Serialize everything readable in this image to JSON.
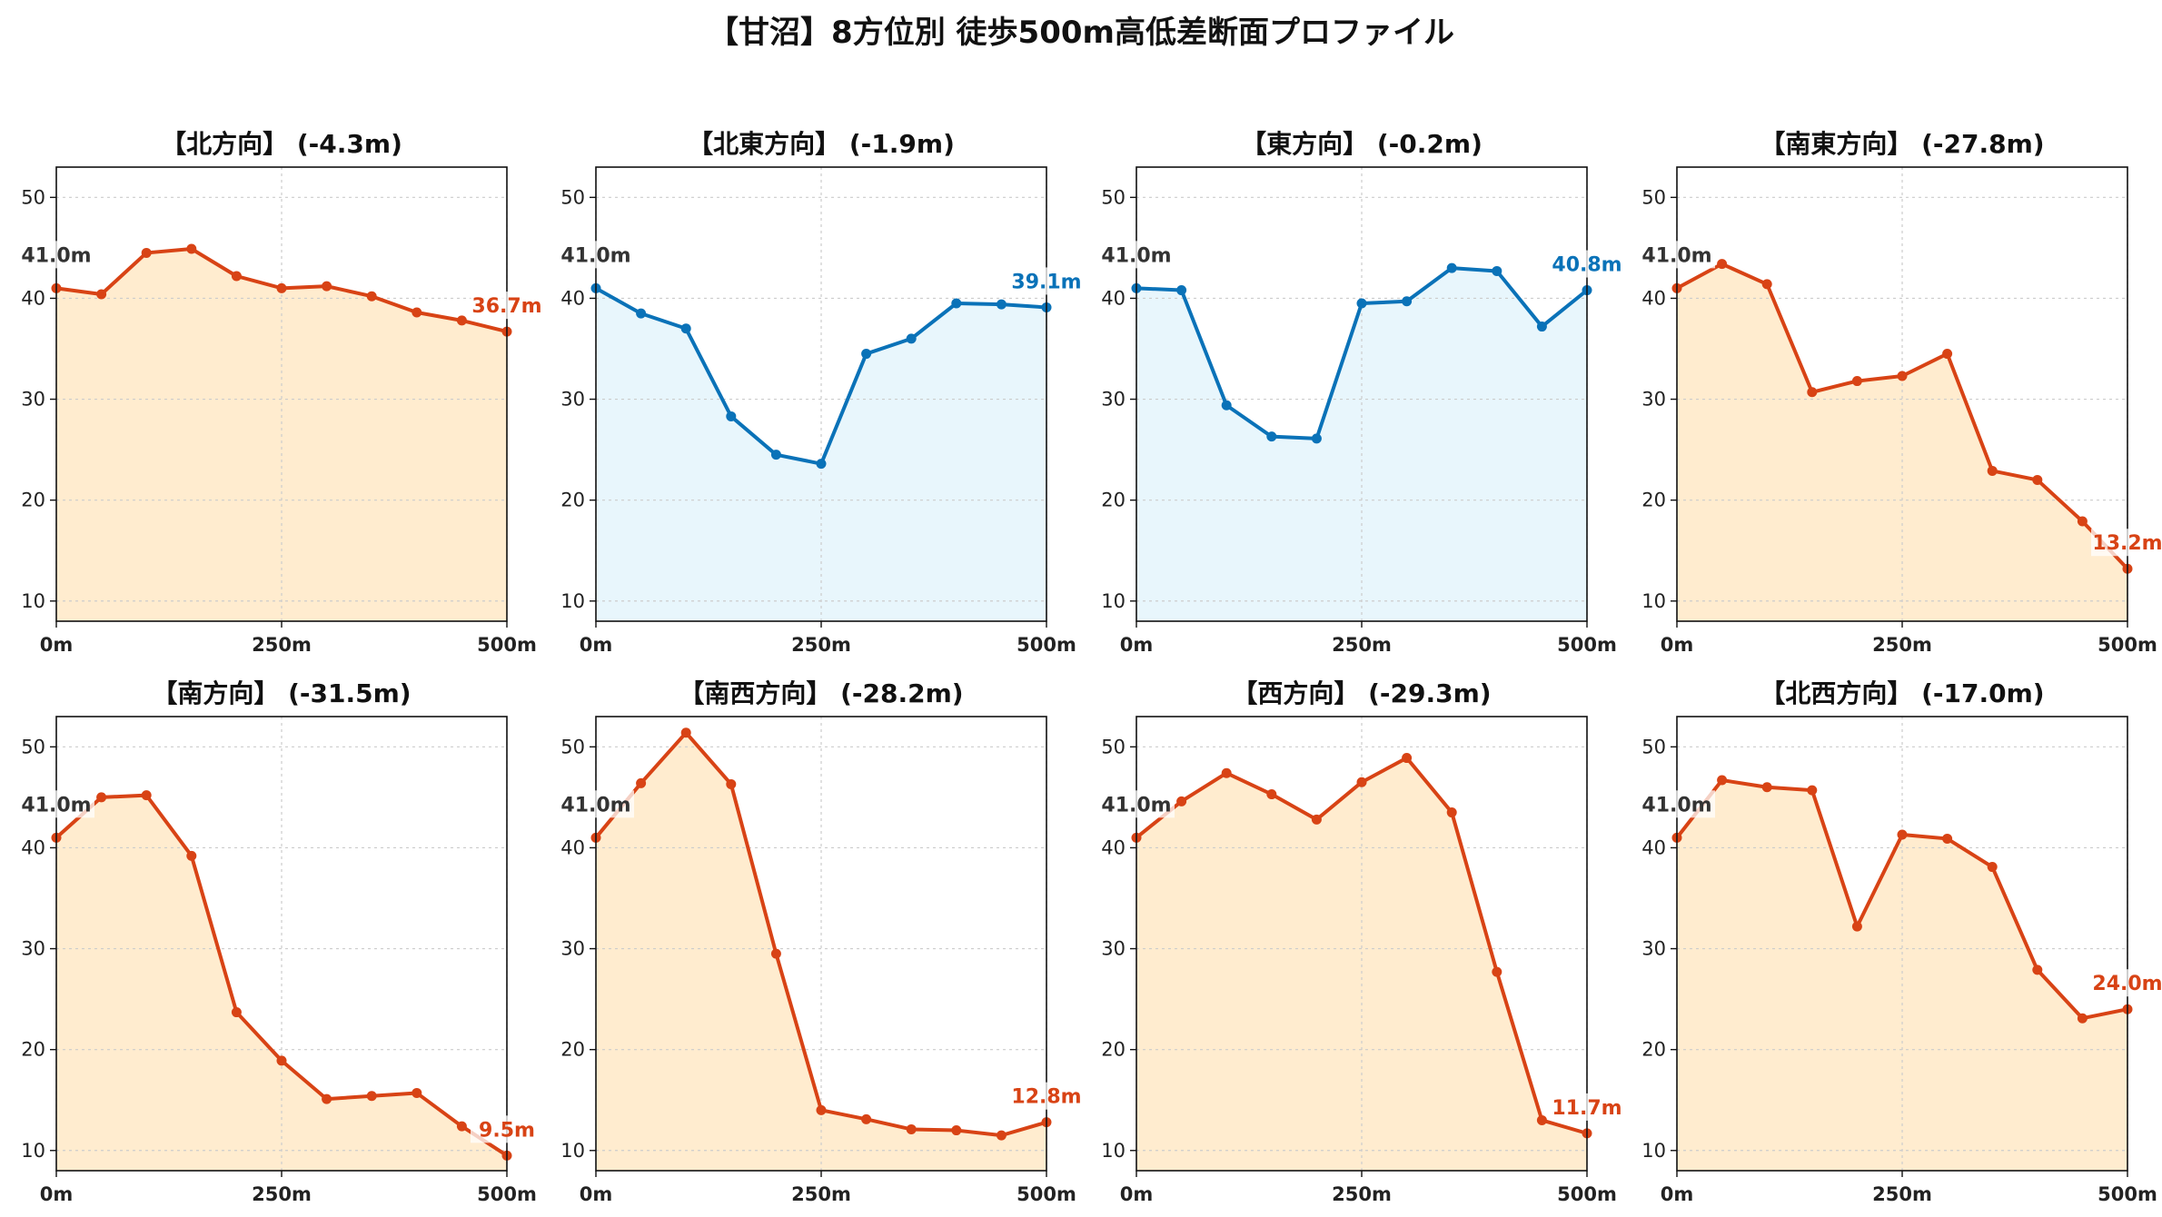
{
  "title": "【甘沼】8方位別 徒歩500m高低差断面プロファイル",
  "colors": {
    "down_line": "#d84315",
    "down_fill": "#ffeccf",
    "up_line": "#0a72b8",
    "up_fill": "#e8f6fc",
    "grid": "#cccccc"
  },
  "chart_data": [
    {
      "type": "area",
      "title": "【北方向】 (-4.3m)",
      "x": [
        0,
        50,
        100,
        150,
        200,
        250,
        300,
        350,
        400,
        450,
        500
      ],
      "y": [
        41.0,
        40.4,
        44.5,
        44.9,
        42.2,
        41.0,
        41.2,
        40.2,
        38.6,
        37.8,
        36.7
      ],
      "xlim": [
        0,
        500
      ],
      "ylim": [
        8,
        53
      ],
      "xticks": [
        "0m",
        "250m",
        "500m"
      ],
      "yticks": [
        10,
        20,
        30,
        40,
        50
      ],
      "start_label": "41.0m",
      "end_label": "36.7m",
      "trend": "down",
      "grid": true
    },
    {
      "type": "area",
      "title": "【北東方向】 (-1.9m)",
      "x": [
        0,
        50,
        100,
        150,
        200,
        250,
        300,
        350,
        400,
        450,
        500
      ],
      "y": [
        41.0,
        38.5,
        37.0,
        28.3,
        24.5,
        23.6,
        34.5,
        36.0,
        39.5,
        39.4,
        39.1
      ],
      "xlim": [
        0,
        500
      ],
      "ylim": [
        8,
        53
      ],
      "xticks": [
        "0m",
        "250m",
        "500m"
      ],
      "yticks": [
        10,
        20,
        30,
        40,
        50
      ],
      "start_label": "41.0m",
      "end_label": "39.1m",
      "trend": "up",
      "grid": true
    },
    {
      "type": "area",
      "title": "【東方向】 (-0.2m)",
      "x": [
        0,
        50,
        100,
        150,
        200,
        250,
        300,
        350,
        400,
        450,
        500
      ],
      "y": [
        41.0,
        40.8,
        29.4,
        26.3,
        26.1,
        39.5,
        39.7,
        43.0,
        42.7,
        37.2,
        40.8
      ],
      "xlim": [
        0,
        500
      ],
      "ylim": [
        8,
        53
      ],
      "xticks": [
        "0m",
        "250m",
        "500m"
      ],
      "yticks": [
        10,
        20,
        30,
        40,
        50
      ],
      "start_label": "41.0m",
      "end_label": "40.8m",
      "trend": "up",
      "grid": true
    },
    {
      "type": "area",
      "title": "【南東方向】 (-27.8m)",
      "x": [
        0,
        50,
        100,
        150,
        200,
        250,
        300,
        350,
        400,
        450,
        500
      ],
      "y": [
        41.0,
        43.4,
        41.4,
        30.7,
        31.8,
        32.3,
        34.5,
        22.9,
        22.0,
        17.9,
        13.2
      ],
      "xlim": [
        0,
        500
      ],
      "ylim": [
        8,
        53
      ],
      "xticks": [
        "0m",
        "250m",
        "500m"
      ],
      "yticks": [
        10,
        20,
        30,
        40,
        50
      ],
      "start_label": "41.0m",
      "end_label": "13.2m",
      "trend": "down",
      "grid": true
    },
    {
      "type": "area",
      "title": "【南方向】 (-31.5m)",
      "x": [
        0,
        50,
        100,
        150,
        200,
        250,
        300,
        350,
        400,
        450,
        500
      ],
      "y": [
        41.0,
        45.0,
        45.2,
        39.2,
        23.7,
        18.9,
        15.1,
        15.4,
        15.7,
        12.4,
        9.5
      ],
      "xlim": [
        0,
        500
      ],
      "ylim": [
        8,
        53
      ],
      "xticks": [
        "0m",
        "250m",
        "500m"
      ],
      "yticks": [
        10,
        20,
        30,
        40,
        50
      ],
      "start_label": "41.0m",
      "end_label": "9.5m",
      "trend": "down",
      "grid": true
    },
    {
      "type": "area",
      "title": "【南西方向】 (-28.2m)",
      "x": [
        0,
        50,
        100,
        150,
        200,
        250,
        300,
        350,
        400,
        450,
        500
      ],
      "y": [
        41.0,
        46.4,
        51.4,
        46.3,
        29.5,
        14.0,
        13.1,
        12.1,
        12.0,
        11.5,
        12.8
      ],
      "xlim": [
        0,
        500
      ],
      "ylim": [
        8,
        53
      ],
      "xticks": [
        "0m",
        "250m",
        "500m"
      ],
      "yticks": [
        10,
        20,
        30,
        40,
        50
      ],
      "start_label": "41.0m",
      "end_label": "12.8m",
      "trend": "down",
      "grid": true
    },
    {
      "type": "area",
      "title": "【西方向】 (-29.3m)",
      "x": [
        0,
        50,
        100,
        150,
        200,
        250,
        300,
        350,
        400,
        450,
        500
      ],
      "y": [
        41.0,
        44.6,
        47.4,
        45.3,
        42.8,
        46.5,
        48.9,
        43.5,
        27.7,
        13.0,
        11.7
      ],
      "xlim": [
        0,
        500
      ],
      "ylim": [
        8,
        53
      ],
      "xticks": [
        "0m",
        "250m",
        "500m"
      ],
      "yticks": [
        10,
        20,
        30,
        40,
        50
      ],
      "start_label": "41.0m",
      "end_label": "11.7m",
      "trend": "down",
      "grid": true
    },
    {
      "type": "area",
      "title": "【北西方向】 (-17.0m)",
      "x": [
        0,
        50,
        100,
        150,
        200,
        250,
        300,
        350,
        400,
        450,
        500
      ],
      "y": [
        41.0,
        46.7,
        46.0,
        45.7,
        32.2,
        41.3,
        40.9,
        38.1,
        27.9,
        23.1,
        24.0
      ],
      "xlim": [
        0,
        500
      ],
      "ylim": [
        8,
        53
      ],
      "xticks": [
        "0m",
        "250m",
        "500m"
      ],
      "yticks": [
        10,
        20,
        30,
        40,
        50
      ],
      "start_label": "41.0m",
      "end_label": "24.0m",
      "trend": "down",
      "grid": true
    }
  ]
}
